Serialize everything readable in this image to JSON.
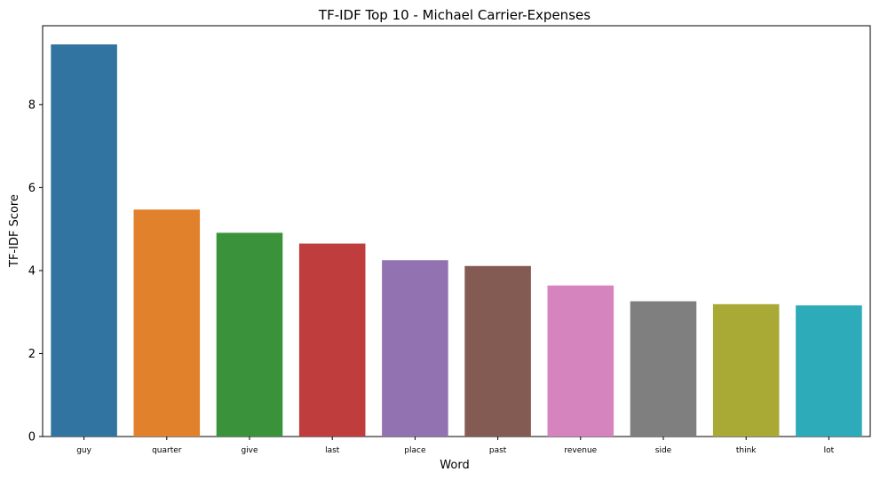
{
  "chart_data": {
    "type": "bar",
    "title": "TF-IDF Top 10 - Michael Carrier-Expenses",
    "xlabel": "Word",
    "ylabel": "TF-IDF Score",
    "categories": [
      "guy",
      "quarter",
      "give",
      "last",
      "place",
      "past",
      "revenue",
      "side",
      "think",
      "lot"
    ],
    "values": [
      9.45,
      5.47,
      4.91,
      4.65,
      4.25,
      4.11,
      3.64,
      3.26,
      3.19,
      3.16
    ],
    "colors": [
      "#3274a1",
      "#e1812c",
      "#3a923a",
      "#c03d3e",
      "#9372b2",
      "#845b53",
      "#d684bd",
      "#7f7f7f",
      "#a9aa35",
      "#2eabb8"
    ],
    "ylim": [
      0,
      9.9
    ],
    "yticks": [
      0,
      2,
      4,
      6,
      8
    ],
    "grid": false,
    "legend": "none"
  }
}
